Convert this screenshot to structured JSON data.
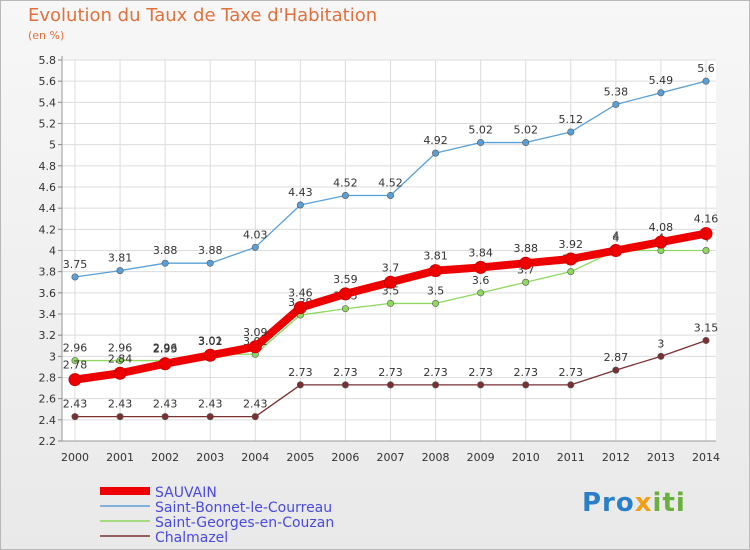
{
  "title": "Evolution du Taux de Taxe d'Habitation",
  "unit_label": "(en %)",
  "logo_text": "Proxiti",
  "chart_data": {
    "type": "line",
    "x": [
      2000,
      2001,
      2002,
      2003,
      2004,
      2005,
      2006,
      2007,
      2008,
      2009,
      2010,
      2011,
      2012,
      2013,
      2014
    ],
    "ylim": [
      2.2,
      5.8
    ],
    "yticks": [
      2.2,
      2.4,
      2.6,
      2.8,
      3,
      3.2,
      3.4,
      3.6,
      3.8,
      4,
      4.2,
      4.4,
      4.6,
      4.8,
      5,
      5.2,
      5.4,
      5.6,
      5.8
    ],
    "grid": true,
    "legend_position": "bottom-left",
    "series": [
      {
        "name": "Saint-Bonnet-le-Courreau",
        "color": "#5aa0d8",
        "values": [
          3.75,
          3.81,
          3.88,
          3.88,
          4.03,
          4.43,
          4.52,
          4.52,
          4.92,
          5.02,
          5.02,
          5.12,
          5.38,
          5.49,
          5.6
        ],
        "labels": [
          "3.75",
          "3.81",
          "3.88",
          "3.88",
          "4.03",
          "4.43",
          "4.52",
          "4.52",
          "4.92",
          "5.02",
          "5.02",
          "5.12",
          "5.38",
          "5.49",
          "5.6"
        ]
      },
      {
        "name": "Saint-Georges-en-Couzan",
        "color": "#8ed860",
        "values": [
          2.96,
          2.96,
          2.96,
          3.02,
          3.02,
          3.39,
          3.45,
          3.5,
          3.5,
          3.6,
          3.7,
          3.8,
          4,
          4,
          4
        ],
        "labels": [
          "2.96",
          "2.96",
          "2.96",
          "3.02",
          "3.02",
          "3.39",
          "3.45",
          "3.5",
          "3.5",
          "3.6",
          "3.7",
          "3.8",
          "4",
          "4",
          "4"
        ]
      },
      {
        "name": "Chalmazel",
        "color": "#7a3030",
        "values": [
          2.43,
          2.43,
          2.43,
          2.43,
          2.43,
          2.73,
          2.73,
          2.73,
          2.73,
          2.73,
          2.73,
          2.73,
          2.87,
          3,
          3.15
        ],
        "labels": [
          "2.43",
          "2.43",
          "2.43",
          "2.43",
          "2.43",
          "2.73",
          "2.73",
          "2.73",
          "2.73",
          "2.73",
          "2.73",
          "2.73",
          "2.87",
          "3",
          "3.15"
        ]
      },
      {
        "name": "SAUVAIN",
        "color": "#ee0000",
        "values": [
          2.78,
          2.84,
          2.93,
          3.01,
          3.09,
          3.46,
          3.59,
          3.7,
          3.81,
          3.84,
          3.88,
          3.92,
          4,
          4.08,
          4.16
        ],
        "labels": [
          "2.78",
          "2.84",
          "2.93",
          "3.01",
          "3.09",
          "3.46",
          "3.59",
          "3.7",
          "3.81",
          "3.84",
          "3.88",
          "3.92",
          "4",
          "4.08",
          "4.16"
        ]
      }
    ]
  }
}
